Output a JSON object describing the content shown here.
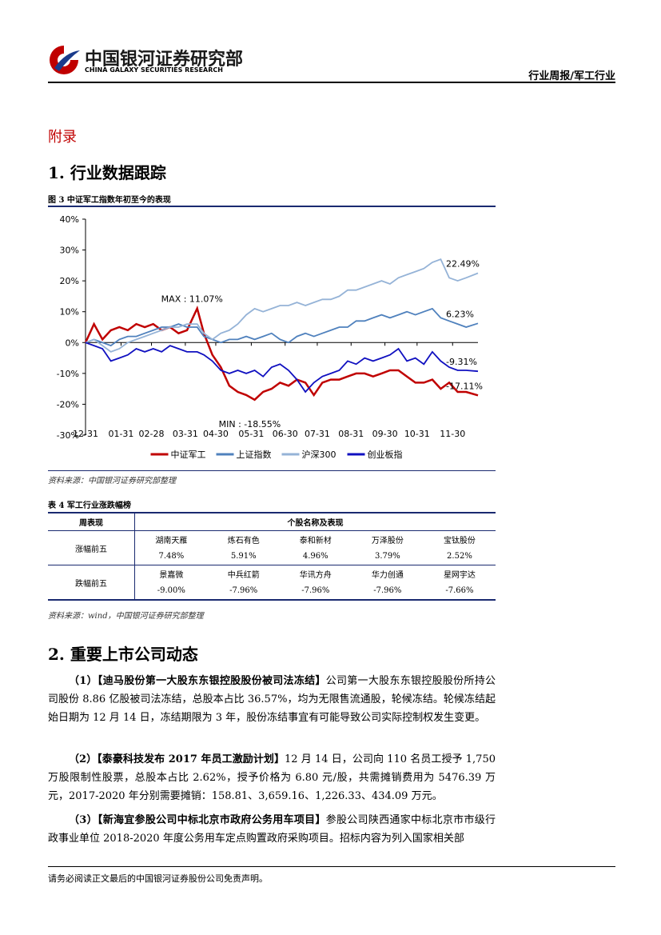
{
  "header": {
    "brand": "中国银河证券研究部",
    "brand_en": "CHINA GALAXY SECURITIES RESEARCH",
    "report": "行业周报/军工行业"
  },
  "appendix": "附录",
  "section1": "1.  行业数据跟踪",
  "chart_data": {
    "type": "line",
    "title": "图 3 中证军工指数年初至今的表现",
    "x": [
      0,
      5,
      10,
      15,
      20,
      25,
      30,
      35,
      40,
      45,
      50,
      55,
      60,
      66,
      70,
      75,
      80,
      85,
      90,
      95,
      100,
      105,
      110,
      115,
      120,
      125,
      130,
      135,
      140,
      145,
      150,
      155,
      160,
      165,
      170,
      175,
      180,
      185,
      190,
      195,
      200,
      205,
      210,
      215,
      220,
      225,
      232
    ],
    "series": [
      {
        "name": "中证军工",
        "color": "#c00000",
        "values": [
          0,
          6,
          1,
          4,
          5,
          4,
          6,
          5,
          6,
          4,
          5,
          3,
          4,
          11.07,
          3,
          -4,
          -8,
          -14,
          -16,
          -17,
          -18.55,
          -16,
          -15,
          -13,
          -14,
          -12,
          -13,
          -17,
          -13,
          -12,
          -12,
          -11,
          -10,
          -10,
          -11,
          -10,
          -9,
          -9,
          -11,
          -13,
          -13,
          -12,
          -15,
          -13,
          -16,
          -16,
          -17.11
        ]
      },
      {
        "name": "上证指数",
        "color": "#4f81bd",
        "values": [
          0,
          1,
          0,
          -1,
          1,
          2,
          2,
          3,
          4,
          5,
          5,
          6,
          5,
          5,
          2,
          1,
          0,
          1,
          1,
          2,
          1,
          2,
          3,
          1,
          0,
          2,
          3,
          2,
          3,
          4,
          5,
          5,
          7,
          7,
          8,
          9,
          8,
          9,
          10,
          9,
          10,
          11,
          8,
          7,
          6,
          5,
          6.23
        ]
      },
      {
        "name": "沪深300",
        "color": "#95b3d7",
        "values": [
          0,
          1,
          -1,
          -3,
          -2,
          0,
          1,
          2,
          3,
          4,
          5,
          5,
          6,
          6,
          3,
          1,
          3,
          4,
          6,
          9,
          11,
          10,
          11,
          12,
          12,
          13,
          12,
          13,
          14,
          14,
          15,
          17,
          17,
          18,
          19,
          20,
          19,
          21,
          22,
          23,
          24,
          26,
          27,
          21,
          20,
          21,
          22.49
        ]
      },
      {
        "name": "创业板指",
        "color": "#1010c0",
        "values": [
          0,
          -1,
          -2,
          -6,
          -5,
          -4,
          -2,
          -3,
          -2,
          -3,
          -1,
          -2,
          -3,
          -3,
          -4,
          -6,
          -9,
          -10,
          -9,
          -10,
          -9,
          -11,
          -8,
          -7,
          -9,
          -12,
          -16,
          -13,
          -11,
          -10,
          -9,
          -6,
          -7,
          -5,
          -6,
          -5,
          -4,
          -2,
          -6,
          -5,
          -7,
          -3,
          -6,
          -8,
          -9,
          -9,
          -9.31
        ]
      }
    ],
    "xlim": [
      0,
      232
    ],
    "xticks": [
      {
        "value": 0,
        "label": "12-31"
      },
      {
        "value": 21,
        "label": "01-31"
      },
      {
        "value": 39,
        "label": "02-28"
      },
      {
        "value": 59,
        "label": "03-31"
      },
      {
        "value": 77,
        "label": "04-30"
      },
      {
        "value": 98,
        "label": "05-31"
      },
      {
        "value": 118,
        "label": "06-30"
      },
      {
        "value": 137,
        "label": "07-31"
      },
      {
        "value": 157,
        "label": "08-31"
      },
      {
        "value": 177,
        "label": "09-30"
      },
      {
        "value": 196,
        "label": "10-31"
      },
      {
        "value": 217,
        "label": "11-30"
      }
    ],
    "ylim": [
      -30,
      40
    ],
    "yticks": [
      {
        "value": -30,
        "label": "-30%"
      },
      {
        "value": -20,
        "label": "-20%"
      },
      {
        "value": -10,
        "label": "-10%"
      },
      {
        "value": 0,
        "label": "0%"
      },
      {
        "value": 10,
        "label": "10%"
      },
      {
        "value": 20,
        "label": "20%"
      },
      {
        "value": 30,
        "label": "30%"
      },
      {
        "value": 40,
        "label": "40%"
      }
    ],
    "annotations": [
      {
        "text": "MAX : 11.07%",
        "x": 66,
        "y": 11.07
      },
      {
        "text": "MIN : -18.55%",
        "x": 100,
        "y": -18.55
      },
      {
        "text": "22.49%",
        "x": 232,
        "y": 22.49
      },
      {
        "text": "6.23%",
        "x": 232,
        "y": 6.23
      },
      {
        "text": "-9.31%",
        "x": 232,
        "y": -9.31
      },
      {
        "text": "-17.11%",
        "x": 232,
        "y": -17.11
      }
    ],
    "legend": "bottom",
    "grid": false
  },
  "chart_source": "资料来源：中国银河证券研究部整理",
  "table": {
    "title": "表 4 军工行业涨跌幅榜",
    "header": [
      "周表现",
      "个股名称及表现"
    ],
    "rows": [
      {
        "label": "涨幅前五",
        "names": [
          "湖南天雁",
          "炼石有色",
          "泰和新材",
          "万泽股份",
          "宝钛股份"
        ],
        "values": [
          "7.48%",
          "5.91%",
          "4.96%",
          "3.79%",
          "2.52%"
        ]
      },
      {
        "label": "跌幅前五",
        "names": [
          "景嘉微",
          "中兵红箭",
          "华讯方舟",
          "华力创通",
          "星网宇达"
        ],
        "values": [
          "-9.00%",
          "-7.96%",
          "-7.96%",
          "-7.96%",
          "-7.66%"
        ]
      }
    ],
    "source": "资料来源：wind，中国银河证券研究部整理"
  },
  "section2": "2.  重要上市公司动态",
  "paragraphs": [
    {
      "lead": "（1）【迪马股份第一大股东东银控股股份被司法冻结】",
      "text": "公司第一大股东东银控股股份所持公司股份 8.86 亿股被司法冻结，总股本占比 36.57%，均为无限售流通股，轮候冻结。轮候冻结起始日期为 12 月 14 日，冻结期限为 3 年，股份冻结事宜有可能导致公司实际控制权发生变更。"
    },
    {
      "lead": "（2）【泰豪科技发布 2017 年员工激励计划】",
      "text": "12 月 14 日，公司向 110 名员工授予 1,750 万股限制性股票，总股本占比 2.62%，授予价格为 6.80 元/股，共需摊销费用为 5476.39 万元，2017-2020 年分别需要摊销：158.81、3,659.16、1,226.33、434.09 万元。"
    },
    {
      "lead": "（3）【新海宜参股公司中标北京市政府公务用车项目】",
      "text": "参股公司陕西通家中标北京市市级行政事业单位 2018-2020 年度公务用车定点购置政府采购项目。招标内容为列入国家相关部"
    }
  ],
  "footer": "请务必阅读正文最后的中国银河证券股份公司免责声明。"
}
